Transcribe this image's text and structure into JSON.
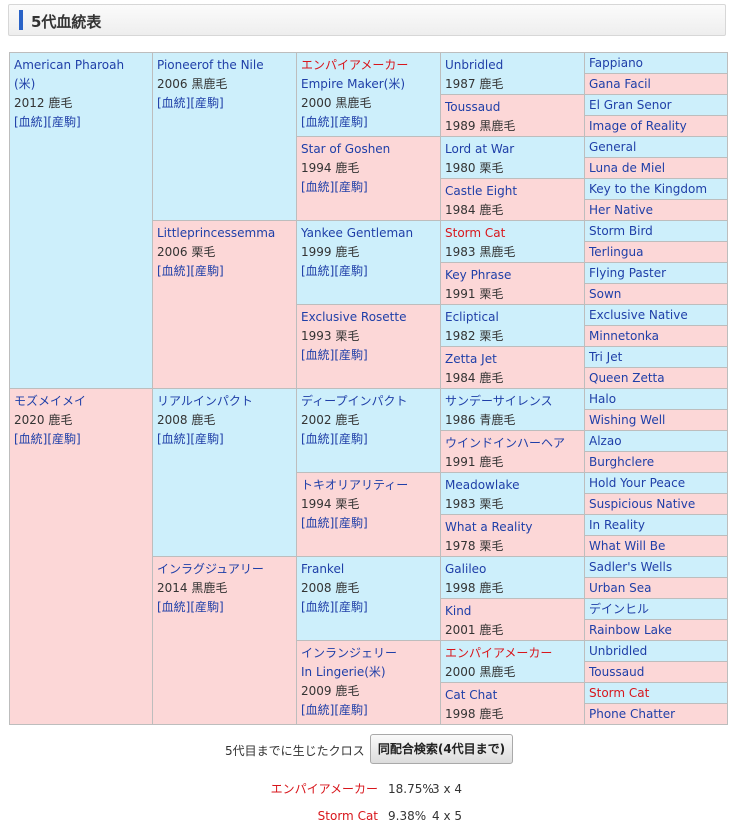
{
  "header": {
    "title": "5代血統表"
  },
  "pedigree": {
    "links_text": "[血統][産駒]",
    "g1": [
      {
        "name": "American Pharoah",
        "name2": "(米)",
        "info": "2012 鹿毛",
        "sex": "m"
      },
      {
        "name": "モズメイメイ",
        "info": "2020 鹿毛",
        "sex": "f"
      }
    ],
    "g2": [
      {
        "name": "Pioneerof the Nile",
        "info": "2006 黒鹿毛",
        "sex": "m"
      },
      {
        "name": "Littleprincessemma",
        "info": "2006 栗毛",
        "sex": "f"
      },
      {
        "name": "リアルインパクト",
        "info": "2008 鹿毛",
        "sex": "m"
      },
      {
        "name": "インラグジュアリー",
        "info": "2014 黒鹿毛",
        "sex": "f"
      }
    ],
    "g3": [
      {
        "name": "エンパイアメーカー",
        "name2": "Empire Maker(米)",
        "info": "2000 黒鹿毛",
        "sex": "m",
        "red": true
      },
      {
        "name": "Star of Goshen",
        "info": "1994 鹿毛",
        "sex": "f"
      },
      {
        "name": "Yankee Gentleman",
        "info": "1999 鹿毛",
        "sex": "m"
      },
      {
        "name": "Exclusive Rosette",
        "info": "1993 栗毛",
        "sex": "f"
      },
      {
        "name": "ディープインパクト",
        "info": "2002 鹿毛",
        "sex": "m"
      },
      {
        "name": "トキオリアリティー",
        "info": "1994 栗毛",
        "sex": "f"
      },
      {
        "name": "Frankel",
        "info": "2008 鹿毛",
        "sex": "m"
      },
      {
        "name": "インランジェリー",
        "name2": "In Lingerie(米)",
        "info": "2009 鹿毛",
        "sex": "f"
      }
    ],
    "g4": [
      {
        "name": "Unbridled",
        "info": "1987 鹿毛",
        "sex": "m"
      },
      {
        "name": "Toussaud",
        "info": "1989 黒鹿毛",
        "sex": "f"
      },
      {
        "name": "Lord at War",
        "info": "1980 栗毛",
        "sex": "m"
      },
      {
        "name": "Castle Eight",
        "info": "1984 鹿毛",
        "sex": "f"
      },
      {
        "name": "Storm Cat",
        "info": "1983 黒鹿毛",
        "sex": "m",
        "red": true
      },
      {
        "name": "Key Phrase",
        "info": "1991 栗毛",
        "sex": "f"
      },
      {
        "name": "Ecliptical",
        "info": "1982 栗毛",
        "sex": "m"
      },
      {
        "name": "Zetta Jet",
        "info": "1984 鹿毛",
        "sex": "f"
      },
      {
        "name": "サンデーサイレンス",
        "info": "1986 青鹿毛",
        "sex": "m"
      },
      {
        "name": "ウインドインハーヘア",
        "info": "1991 鹿毛",
        "sex": "f"
      },
      {
        "name": "Meadowlake",
        "info": "1983 栗毛",
        "sex": "m"
      },
      {
        "name": "What a Reality",
        "info": "1978 栗毛",
        "sex": "f"
      },
      {
        "name": "Galileo",
        "info": "1998 鹿毛",
        "sex": "m"
      },
      {
        "name": "Kind",
        "info": "2001 鹿毛",
        "sex": "f"
      },
      {
        "name": "エンパイアメーカー",
        "info": "2000 黒鹿毛",
        "sex": "m",
        "red": true
      },
      {
        "name": "Cat Chat",
        "info": "1998 鹿毛",
        "sex": "f"
      }
    ],
    "g5": [
      {
        "name": "Fappiano",
        "sex": "m"
      },
      {
        "name": "Gana Facil",
        "sex": "f"
      },
      {
        "name": "El Gran Senor",
        "sex": "m"
      },
      {
        "name": "Image of Reality",
        "sex": "f"
      },
      {
        "name": "General",
        "sex": "m"
      },
      {
        "name": "Luna de Miel",
        "sex": "f"
      },
      {
        "name": "Key to the Kingdom",
        "sex": "m"
      },
      {
        "name": "Her Native",
        "sex": "f"
      },
      {
        "name": "Storm Bird",
        "sex": "m"
      },
      {
        "name": "Terlingua",
        "sex": "f"
      },
      {
        "name": "Flying Paster",
        "sex": "m"
      },
      {
        "name": "Sown",
        "sex": "f"
      },
      {
        "name": "Exclusive Native",
        "sex": "m"
      },
      {
        "name": "Minnetonka",
        "sex": "f"
      },
      {
        "name": "Tri Jet",
        "sex": "m"
      },
      {
        "name": "Queen Zetta",
        "sex": "f"
      },
      {
        "name": "Halo",
        "sex": "m"
      },
      {
        "name": "Wishing Well",
        "sex": "f"
      },
      {
        "name": "Alzao",
        "sex": "m"
      },
      {
        "name": "Burghclere",
        "sex": "f"
      },
      {
        "name": "Hold Your Peace",
        "sex": "m"
      },
      {
        "name": "Suspicious Native",
        "sex": "f"
      },
      {
        "name": "In Reality",
        "sex": "m"
      },
      {
        "name": "What Will Be",
        "sex": "f"
      },
      {
        "name": "Sadler's Wells",
        "sex": "m"
      },
      {
        "name": "Urban Sea",
        "sex": "f"
      },
      {
        "name": "デインヒル",
        "sex": "m"
      },
      {
        "name": "Rainbow Lake",
        "sex": "f"
      },
      {
        "name": "Unbridled",
        "sex": "m"
      },
      {
        "name": "Toussaud",
        "sex": "f"
      },
      {
        "name": "Storm Cat",
        "sex": "m",
        "red": true
      },
      {
        "name": "Phone Chatter",
        "sex": "f"
      }
    ]
  },
  "cross": {
    "label": "5代目までに生じたクロス",
    "button_label": "同配合検索(4代目まで)",
    "items": [
      {
        "horse": "エンパイアメーカー",
        "percent": "18.75%",
        "generations": "3 x 4"
      },
      {
        "horse": "Storm Cat",
        "percent": "9.38%",
        "generations": "4 x 5"
      }
    ]
  },
  "colors": {
    "male_bg": "#cdeffb",
    "female_bg": "#fcd7d7",
    "link": "#1f3fa8",
    "cross_red": "#d8161c",
    "accent": "#2a63c7"
  }
}
